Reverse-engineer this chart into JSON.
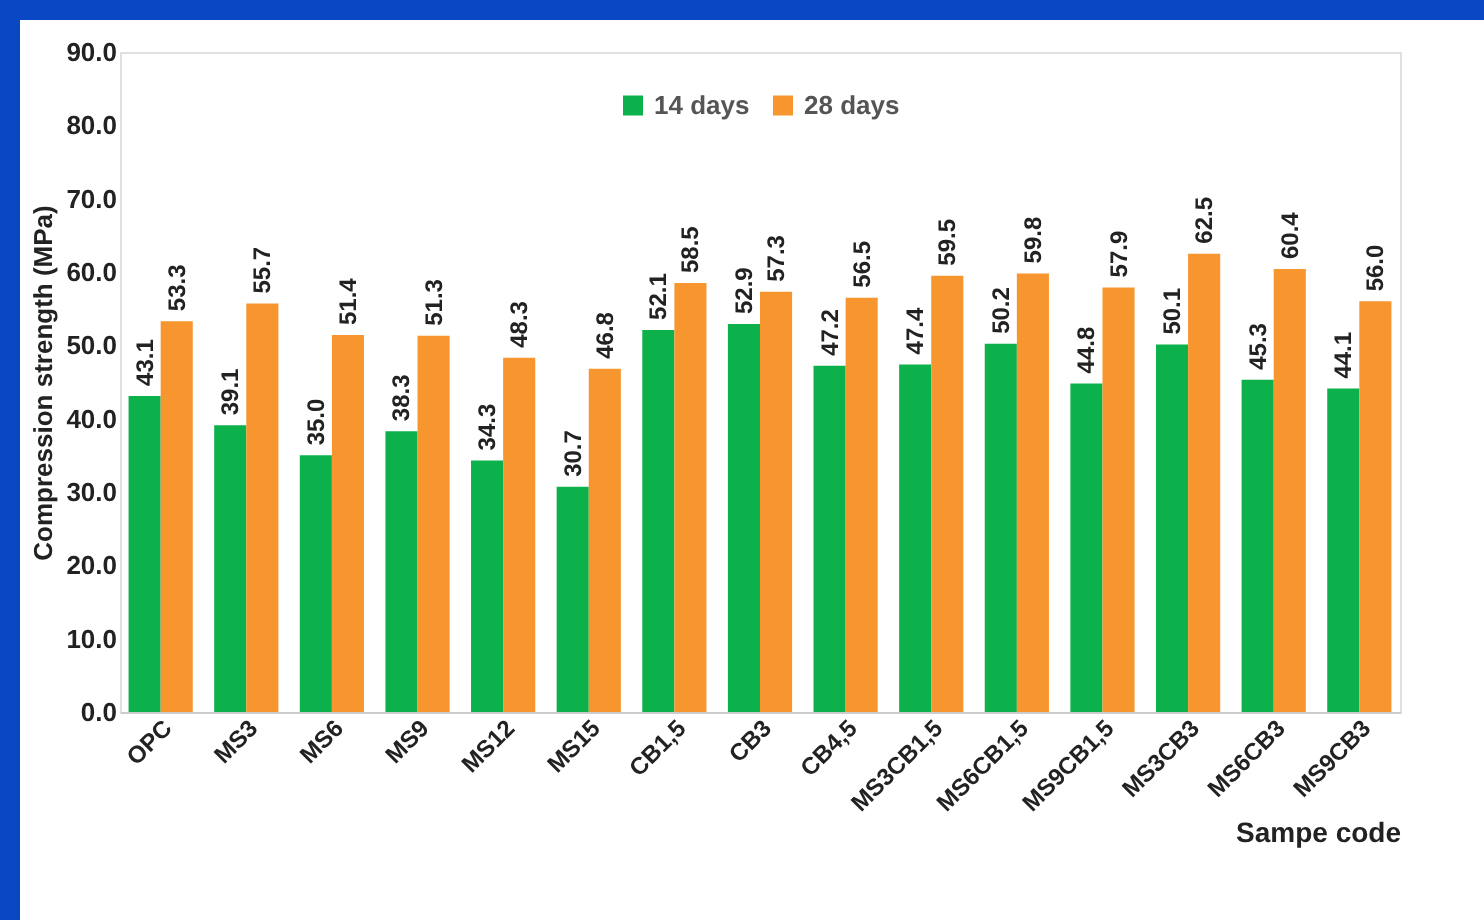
{
  "chart_data": {
    "type": "bar",
    "xlabel": "Sampe code",
    "ylabel": "Compression strength (MPa)",
    "categories": [
      "OPC",
      "MS3",
      "MS6",
      "MS9",
      "MS12",
      "MS15",
      "CB1,5",
      "CB3",
      "CB4,5",
      "MS3CB1,5",
      "MS6CB1,5",
      "MS9CB1,5",
      "MS3CB3",
      "MS6CB3",
      "MS9CB3"
    ],
    "series": [
      {
        "name": "14 days",
        "color": "#0cb14b",
        "values": [
          43.1,
          39.1,
          35.0,
          38.3,
          34.3,
          30.7,
          52.1,
          52.9,
          47.2,
          47.4,
          50.2,
          44.8,
          50.1,
          45.3,
          44.1
        ],
        "value_labels": [
          "43.1",
          "39.1",
          "35.0",
          "38.3",
          "34.3",
          "30.7",
          "52.1",
          "52.9",
          "47.2",
          "47.4",
          "50.2",
          "44.8",
          "50.1",
          "45.3",
          "44.1"
        ]
      },
      {
        "name": "28 days",
        "color": "#f7962f",
        "values": [
          53.3,
          55.7,
          51.4,
          51.3,
          48.3,
          46.8,
          58.5,
          57.3,
          56.5,
          59.5,
          59.8,
          57.9,
          62.5,
          60.4,
          56.0
        ],
        "value_labels": [
          "53.3",
          "55.7",
          "51.4",
          "51.3",
          "48.3",
          "46.8",
          "58.5",
          "57.3",
          "56.5",
          "59.5",
          "59.8",
          "57.9",
          "62.5",
          "60.4",
          "56.0"
        ]
      }
    ],
    "ylim": [
      0,
      90
    ],
    "yticks": [
      {
        "value": 0,
        "label": "0.0"
      },
      {
        "value": 10,
        "label": "10.0"
      },
      {
        "value": 20,
        "label": "20.0"
      },
      {
        "value": 30,
        "label": "30.0"
      },
      {
        "value": 40,
        "label": "40.0"
      },
      {
        "value": 50,
        "label": "50.0"
      },
      {
        "value": 60,
        "label": "60.0"
      },
      {
        "value": 70,
        "label": "70.0"
      },
      {
        "value": 80,
        "label": "80.0"
      },
      {
        "value": 90,
        "label": "90.0"
      }
    ],
    "grid": false,
    "legend": "top"
  }
}
